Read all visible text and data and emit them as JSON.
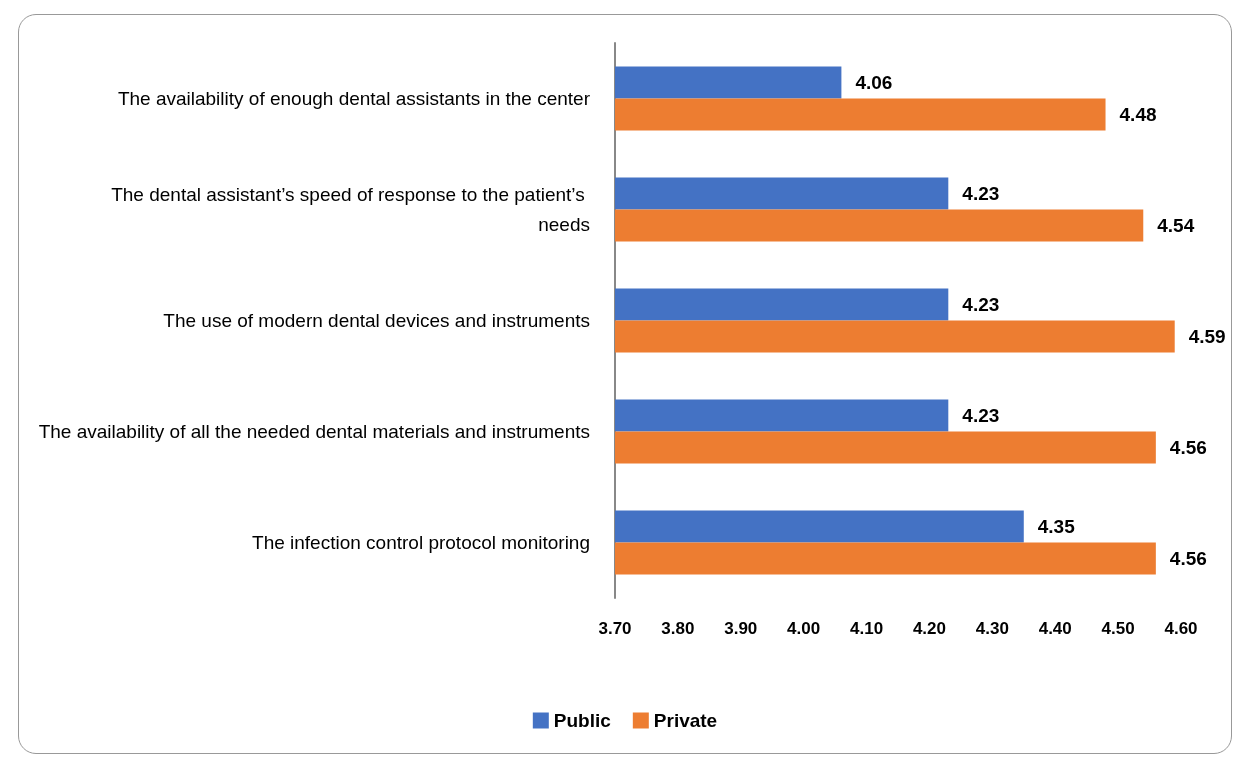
{
  "chart_data": {
    "type": "bar",
    "orientation": "horizontal",
    "categories": [
      "The availability of enough dental assistants in the center",
      "The dental assistant’s speed of response to the patient’s needs",
      "The use of modern dental devices and instruments",
      "The availability of all the needed dental materials and instruments",
      "The infection control protocol monitoring"
    ],
    "series": [
      {
        "name": "Public",
        "color": "#4472c4",
        "values": [
          4.06,
          4.23,
          4.23,
          4.23,
          4.35
        ]
      },
      {
        "name": "Private",
        "color": "#ed7d31",
        "values": [
          4.48,
          4.54,
          4.59,
          4.56,
          4.56
        ]
      }
    ],
    "xlim": [
      3.7,
      4.6
    ],
    "xticks": [
      {
        "value": 3.7,
        "label": "3.70"
      },
      {
        "value": 3.8,
        "label": "3.80"
      },
      {
        "value": 3.9,
        "label": "3.90"
      },
      {
        "value": 4.0,
        "label": "4.00"
      },
      {
        "value": 4.1,
        "label": "4.10"
      },
      {
        "value": 4.2,
        "label": "4.20"
      },
      {
        "value": 4.3,
        "label": "4.30"
      },
      {
        "value": 4.4,
        "label": "4.40"
      },
      {
        "value": 4.5,
        "label": "4.50"
      },
      {
        "value": 4.6,
        "label": "4.60"
      }
    ],
    "data_labels": true,
    "grid": false,
    "legend": "bottom"
  }
}
